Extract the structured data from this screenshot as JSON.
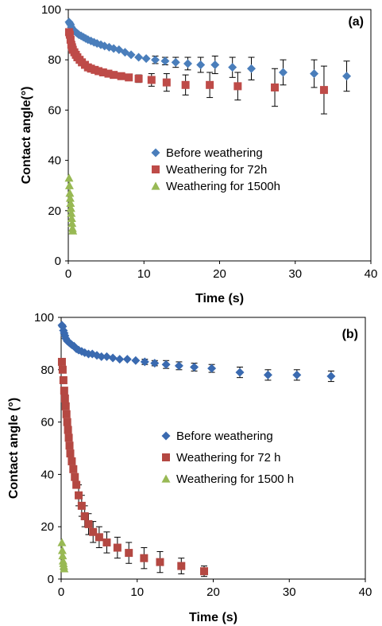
{
  "chart_data": [
    {
      "type": "scatter",
      "panel_label": "(a)",
      "xlabel": "Time (s)",
      "ylabel": "Contact angle(°)",
      "xlim": [
        0,
        40
      ],
      "ylim": [
        0,
        100
      ],
      "xticks": [
        0,
        10,
        20,
        30,
        40
      ],
      "yticks": [
        0,
        20,
        40,
        60,
        80,
        100
      ],
      "grid": false,
      "legend_position": "middle-left",
      "series": [
        {
          "name": "Before weathering",
          "marker": "diamond",
          "color": "#4a7ebb",
          "x": [
            0.1,
            0.2,
            0.3,
            0.4,
            0.5,
            0.6,
            0.8,
            1.0,
            1.2,
            1.4,
            1.7,
            2.0,
            2.3,
            2.6,
            3.0,
            3.4,
            3.8,
            4.3,
            4.8,
            5.4,
            6.0,
            6.7,
            7.5,
            8.3,
            9.3,
            10.3,
            11.5,
            12.8,
            14.2,
            15.8,
            17.5,
            19.4,
            21.7,
            24.2,
            28.4,
            32.5,
            36.8
          ],
          "y": [
            95,
            94.5,
            94,
            93,
            92.5,
            92,
            91.5,
            91,
            90.5,
            90,
            89.5,
            89,
            88.5,
            88,
            87.5,
            87,
            86.5,
            86,
            85.5,
            85,
            84.5,
            84,
            83,
            82,
            81,
            80.5,
            80,
            79.5,
            79,
            78.5,
            78,
            78,
            77,
            76.5,
            75,
            74.5,
            73.5
          ],
          "err": [
            0,
            0,
            0,
            0,
            0,
            0,
            0,
            0,
            0,
            0,
            0,
            0,
            0,
            0,
            0,
            0,
            0,
            0,
            0,
            0,
            0,
            0,
            0,
            0,
            0,
            0,
            1.5,
            1.5,
            2,
            2.5,
            3,
            3.5,
            4,
            4.5,
            5,
            5.5,
            6
          ]
        },
        {
          "name": "Weathering for 72h",
          "marker": "square",
          "color": "#be4b48",
          "x": [
            0.1,
            0.2,
            0.3,
            0.4,
            0.5,
            0.6,
            0.8,
            1.0,
            1.2,
            1.5,
            1.8,
            2.2,
            2.6,
            3.0,
            3.5,
            4.0,
            4.6,
            5.3,
            6.0,
            7.0,
            8.0,
            9.3,
            11.0,
            13.0,
            15.5,
            18.7,
            22.4,
            27.3,
            33.8
          ],
          "y": [
            91,
            90,
            88,
            86,
            85,
            84,
            83,
            82,
            81,
            80,
            79,
            78,
            77,
            76.5,
            76,
            75.5,
            75,
            74.5,
            74,
            73.5,
            73,
            72.5,
            72,
            71,
            70,
            70,
            69.5,
            69,
            68
          ],
          "err": [
            0,
            0,
            0,
            0,
            0,
            0,
            0,
            0,
            0,
            0,
            0,
            0,
            0,
            0,
            0,
            0,
            0,
            0,
            0,
            0,
            0,
            1.5,
            2.5,
            3.5,
            4,
            5,
            5.5,
            7.5,
            9.5
          ]
        },
        {
          "name": "Weathering for 1500h",
          "marker": "triangle",
          "color": "#98b954",
          "x": [
            0.1,
            0.15,
            0.2,
            0.25,
            0.3,
            0.35,
            0.4,
            0.45,
            0.5,
            0.55,
            0.6
          ],
          "y": [
            33,
            30,
            27,
            25,
            23,
            21,
            19,
            17,
            15,
            13,
            12
          ],
          "err": [
            0,
            0,
            0,
            0,
            0,
            0,
            0,
            0,
            0,
            0,
            0
          ]
        }
      ]
    },
    {
      "type": "scatter",
      "panel_label": "(b)",
      "xlabel": "Time (s)",
      "ylabel": "Contact angle (°)",
      "xlim": [
        0,
        40
      ],
      "ylim": [
        0,
        100
      ],
      "xticks": [
        0,
        10,
        20,
        30,
        40
      ],
      "yticks": [
        0,
        20,
        40,
        60,
        80,
        100
      ],
      "grid": false,
      "legend_position": "middle-right",
      "series": [
        {
          "name": "Before weathering",
          "marker": "diamond",
          "color": "#3a6ab0",
          "x": [
            0.1,
            0.2,
            0.3,
            0.4,
            0.5,
            0.6,
            0.8,
            1.0,
            1.2,
            1.4,
            1.7,
            2.0,
            2.3,
            2.7,
            3.1,
            3.6,
            4.1,
            4.7,
            5.3,
            6.0,
            6.8,
            7.7,
            8.7,
            9.8,
            11.0,
            12.3,
            13.8,
            15.5,
            17.5,
            19.8,
            23.5,
            27.2,
            31.0,
            35.5
          ],
          "y": [
            97,
            96.5,
            95,
            94,
            93,
            92,
            91,
            90.5,
            90,
            89.5,
            89,
            88,
            87.5,
            87,
            86.5,
            86,
            86,
            85.5,
            85,
            85,
            84.5,
            84,
            84,
            83.5,
            83,
            82.5,
            82,
            81.5,
            81,
            80.5,
            79,
            78,
            78,
            77.5
          ],
          "err": [
            0,
            0,
            0,
            0,
            0,
            0,
            0,
            0,
            0,
            0,
            0,
            0,
            0,
            0,
            0,
            0,
            0,
            0,
            0,
            0,
            0,
            0,
            0,
            0,
            1,
            1,
            1.5,
            1.5,
            1.5,
            1.5,
            2,
            2,
            2,
            2
          ]
        },
        {
          "name": "Weathering for 72 h",
          "marker": "square",
          "color": "#b44842",
          "x": [
            0.1,
            0.2,
            0.3,
            0.4,
            0.5,
            0.6,
            0.7,
            0.8,
            0.9,
            1.0,
            1.1,
            1.2,
            1.4,
            1.6,
            1.8,
            2.0,
            2.3,
            2.7,
            3.1,
            3.6,
            4.2,
            5.0,
            6.0,
            7.4,
            8.9,
            10.9,
            13.0,
            15.8,
            18.8
          ],
          "y": [
            83,
            80,
            76,
            72,
            69,
            66,
            63,
            60,
            57,
            54,
            51,
            48,
            45,
            42,
            39,
            36,
            32,
            28,
            24,
            21,
            18,
            16,
            14,
            12,
            10,
            8,
            6.5,
            5,
            3
          ],
          "err": [
            0,
            0,
            0,
            0,
            0,
            0,
            0,
            0,
            0,
            0,
            0,
            0,
            0,
            0,
            0,
            0,
            4,
            4,
            4,
            4,
            4,
            4,
            4,
            4,
            4,
            4,
            4,
            3,
            2
          ]
        },
        {
          "name": "Weathering for 1500 h",
          "marker": "triangle",
          "color": "#98b954",
          "x": [
            0.1,
            0.15,
            0.2,
            0.25,
            0.3,
            0.35,
            0.4
          ],
          "y": [
            14,
            11,
            9,
            7,
            6,
            5,
            4
          ],
          "err": [
            0,
            0,
            0,
            0,
            0,
            0,
            0
          ]
        }
      ]
    }
  ]
}
